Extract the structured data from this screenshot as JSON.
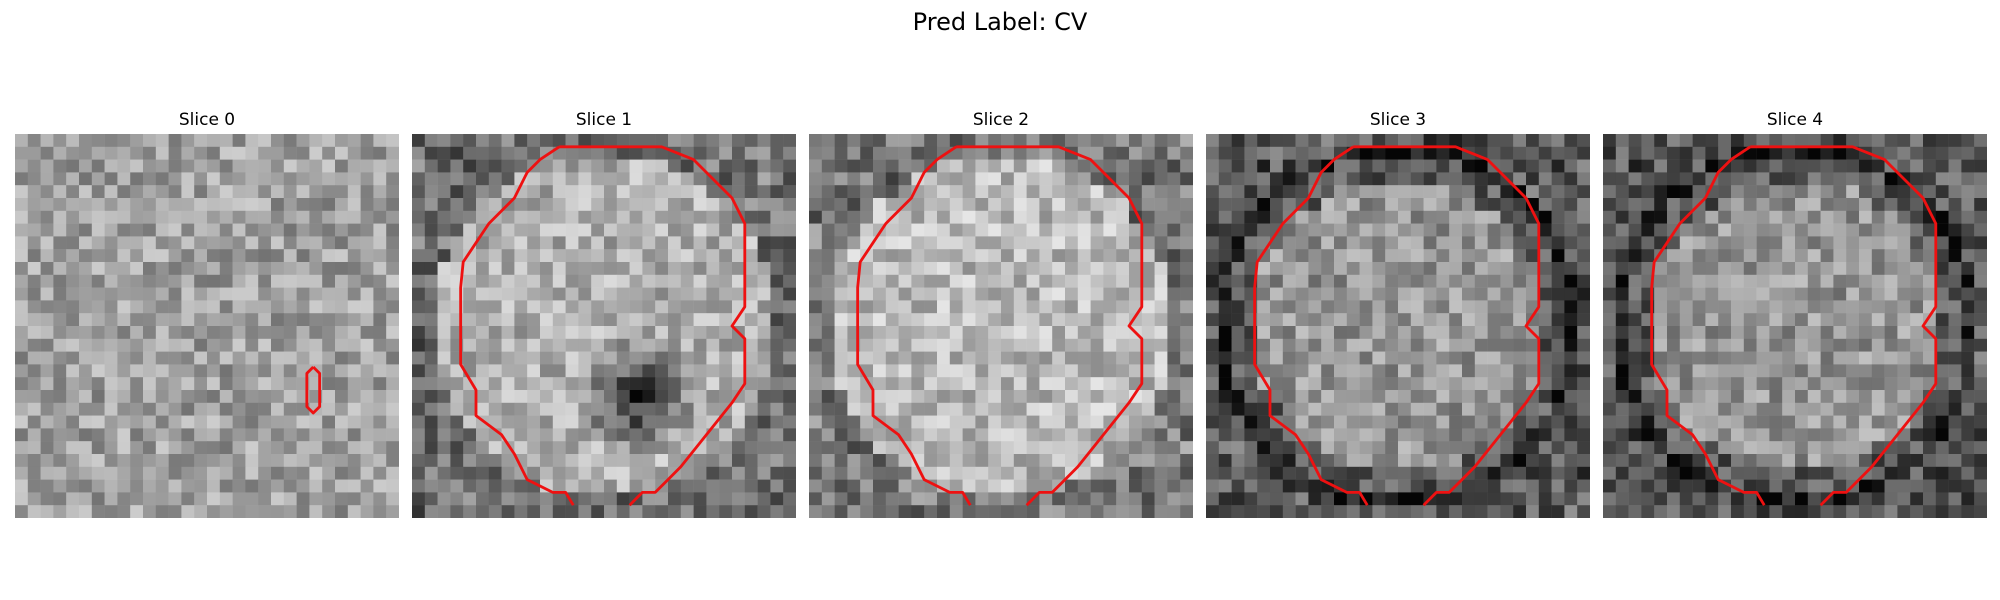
{
  "figure": {
    "title": "Pred Label: CV"
  },
  "panels": [
    {
      "title": "Slice 0",
      "style": "noise",
      "base": 160,
      "contour": "small",
      "dark_blob": false
    },
    {
      "title": "Slice 1",
      "style": "cell",
      "base": 175,
      "contour": "octagon_open_bottom",
      "dark_blob": true
    },
    {
      "title": "Slice 2",
      "style": "cell",
      "base": 185,
      "contour": "octagon_open_bottom",
      "dark_blob": false
    },
    {
      "title": "Slice 3",
      "style": "cell_dark_rim",
      "base": 150,
      "contour": "octagon_open_bottom",
      "dark_blob": false
    },
    {
      "title": "Slice 4",
      "style": "cell_dark_rim",
      "base": 150,
      "contour": "octagon_open_bottom",
      "dark_blob": false
    }
  ],
  "colors": {
    "contour": "#ee1111",
    "background": "#ffffff"
  }
}
